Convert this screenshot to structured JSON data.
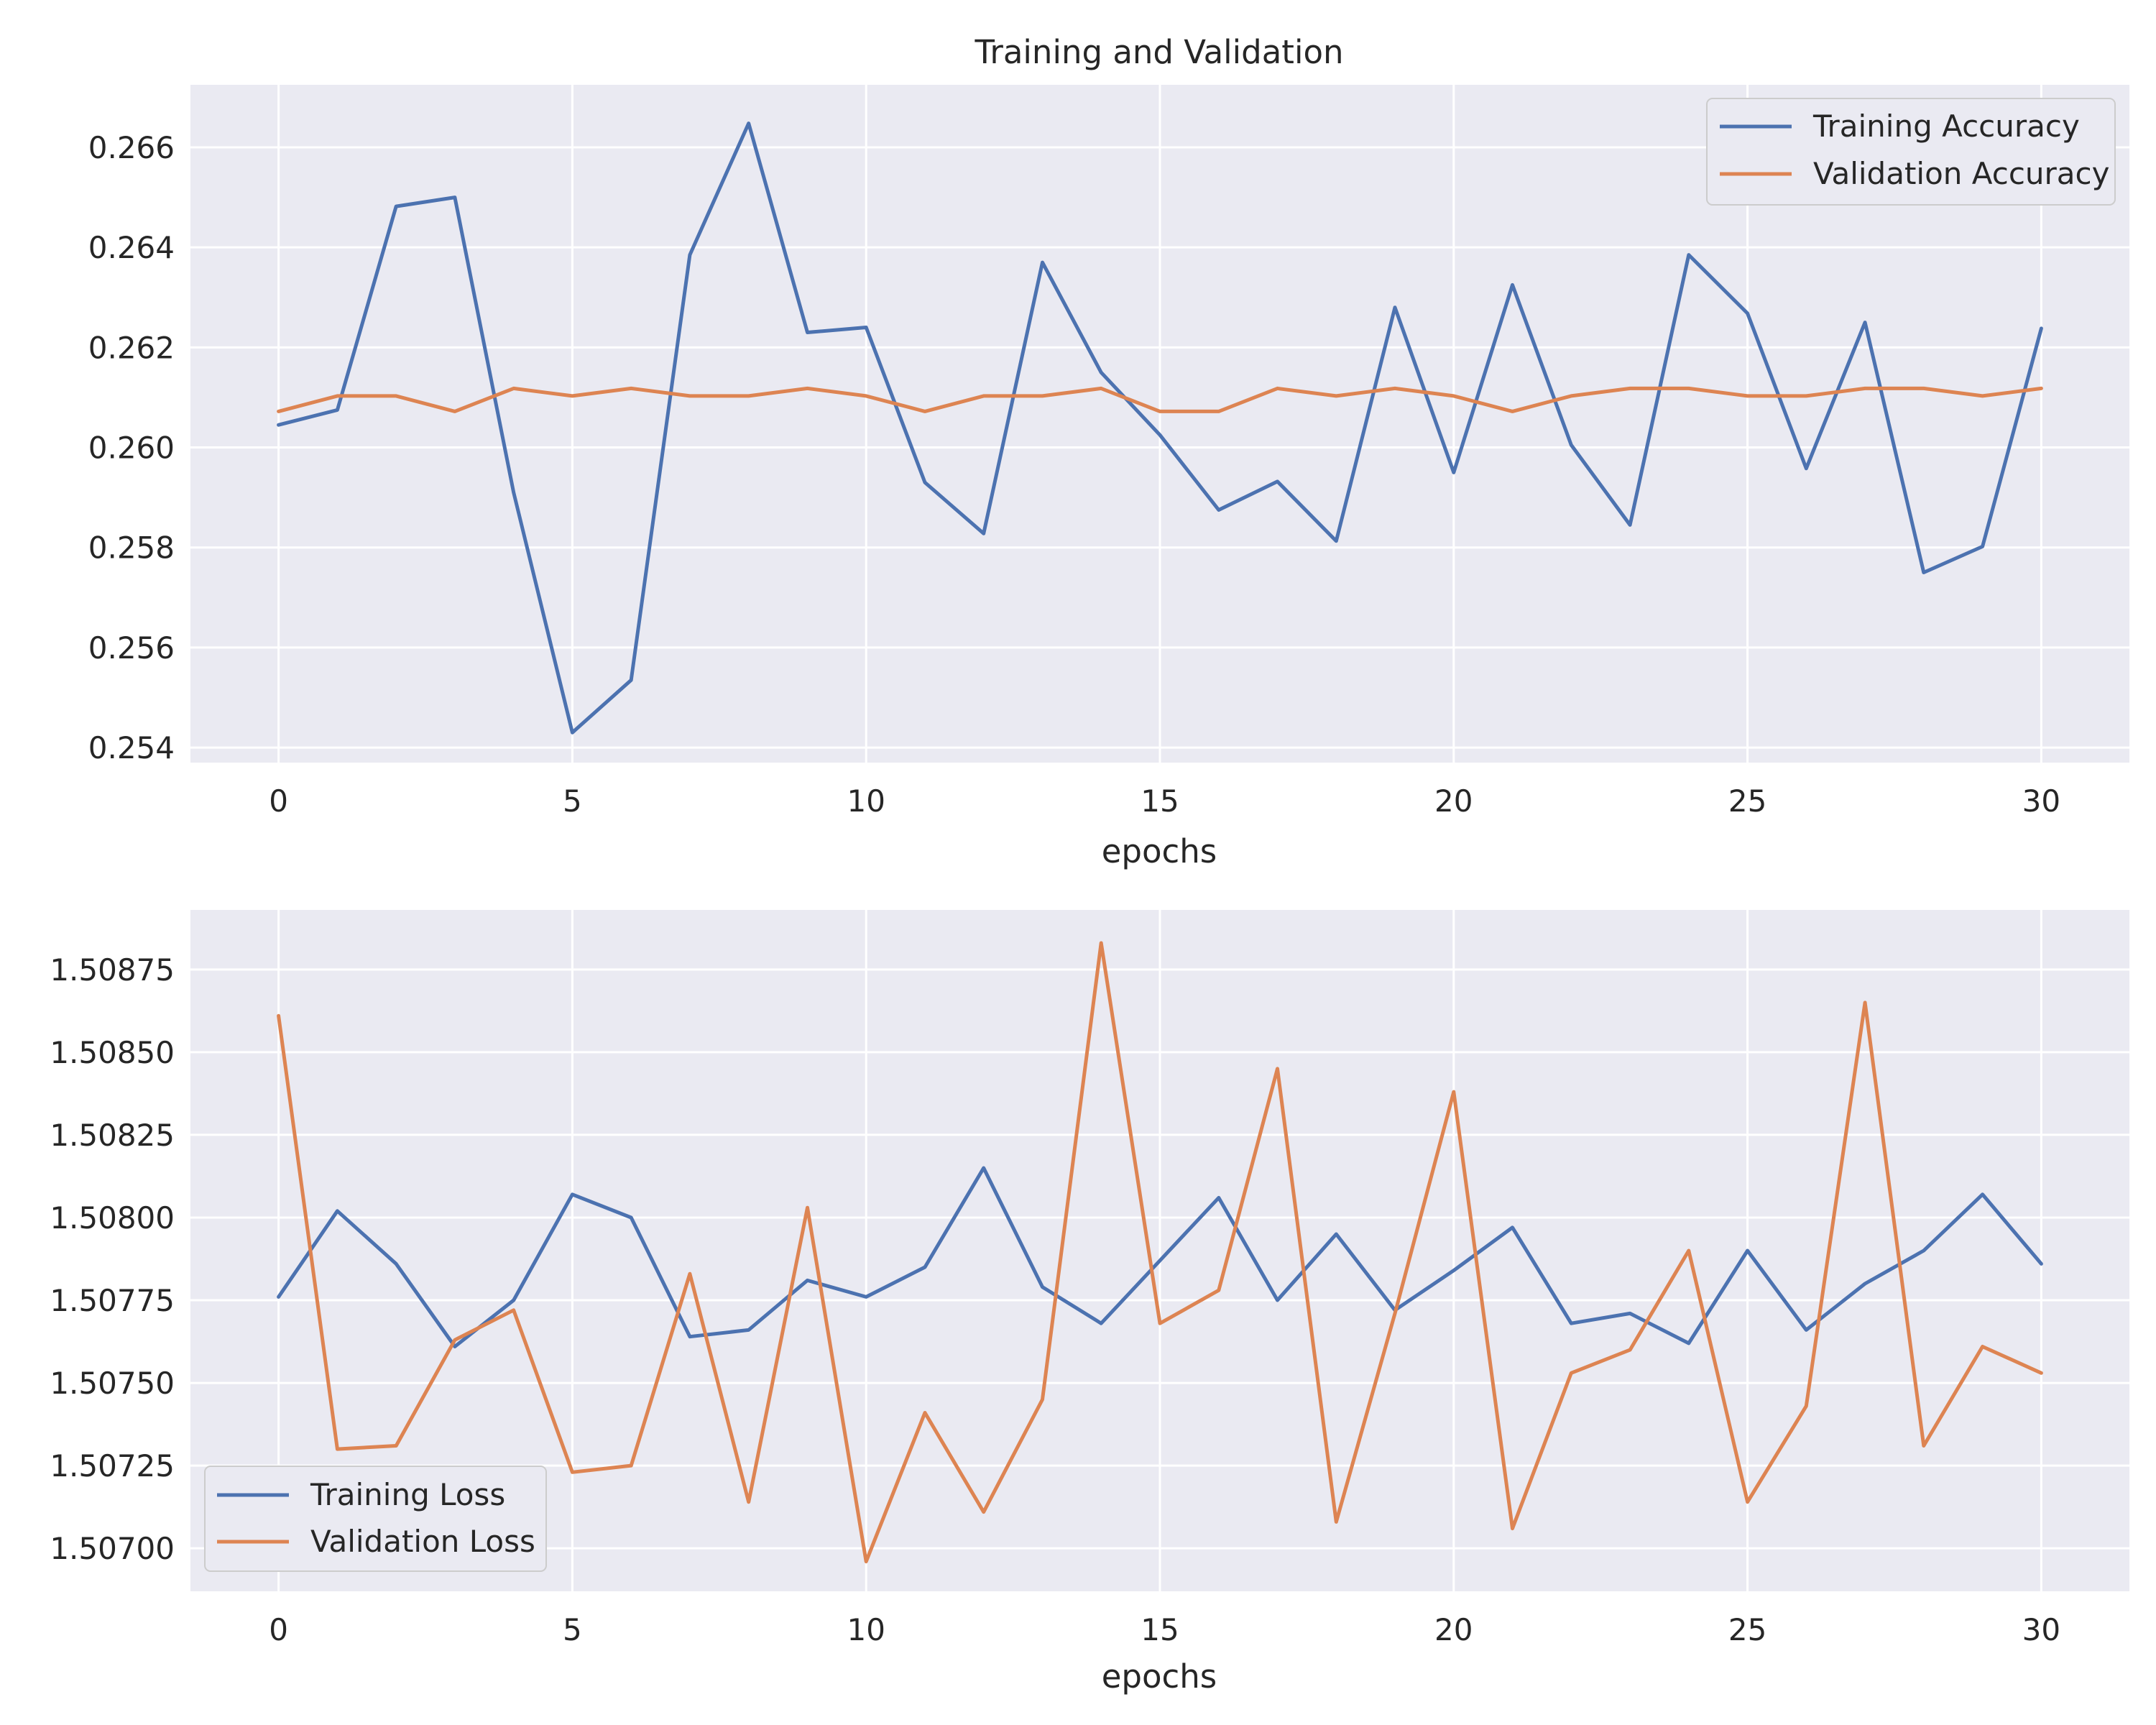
{
  "colors": {
    "axes_background": "#eaeaf2",
    "grid": "#ffffff",
    "training": "#4c72b0",
    "validation": "#dd8452",
    "legend_background": "#eaeaf2",
    "legend_border": "#cccccc"
  },
  "chart_data": [
    {
      "type": "line",
      "title": "Training and Validation",
      "xlabel": "epochs",
      "ylabel": "",
      "xlim": [
        -1.5,
        31.5
      ],
      "ylim": [
        0.2537,
        0.26725
      ],
      "xticks": [
        0,
        5,
        10,
        15,
        20,
        25,
        30
      ],
      "xtick_labels": [
        "0",
        "5",
        "10",
        "15",
        "20",
        "25",
        "30"
      ],
      "yticks": [
        0.254,
        0.256,
        0.258,
        0.26,
        0.262,
        0.264,
        0.266
      ],
      "ytick_labels": [
        "0.254",
        "0.256",
        "0.258",
        "0.260",
        "0.262",
        "0.264",
        "0.266"
      ],
      "grid": true,
      "legend_position": "top-right",
      "x": [
        0,
        1,
        2,
        3,
        4,
        5,
        6,
        7,
        8,
        9,
        10,
        11,
        12,
        13,
        14,
        15,
        16,
        17,
        18,
        19,
        20,
        21,
        22,
        23,
        24,
        25,
        26,
        27,
        28,
        29,
        30
      ],
      "series": [
        {
          "name": "Training Accuracy",
          "color": "#4c72b0",
          "values": [
            0.26045,
            0.26075,
            0.26482,
            0.265,
            0.2591,
            0.2543,
            0.25535,
            0.26385,
            0.26648,
            0.2623,
            0.2624,
            0.2593,
            0.25828,
            0.2637,
            0.2615,
            0.26025,
            0.25875,
            0.25932,
            0.25813,
            0.2628,
            0.2595,
            0.26325,
            0.26005,
            0.25845,
            0.26385,
            0.26268,
            0.25958,
            0.2625,
            0.2575,
            0.25802,
            0.26238
          ]
        },
        {
          "name": "Validation Accuracy",
          "color": "#dd8452",
          "values": [
            0.26072,
            0.26103,
            0.26103,
            0.26072,
            0.26118,
            0.26103,
            0.26118,
            0.26103,
            0.26103,
            0.26118,
            0.26103,
            0.26072,
            0.26103,
            0.26103,
            0.26118,
            0.26072,
            0.26072,
            0.26118,
            0.26103,
            0.26118,
            0.26103,
            0.26072,
            0.26103,
            0.26118,
            0.26118,
            0.26103,
            0.26103,
            0.26118,
            0.26118,
            0.26103,
            0.26118
          ]
        }
      ]
    },
    {
      "type": "line",
      "title": "",
      "xlabel": "epochs",
      "ylabel": "",
      "xlim": [
        -1.5,
        31.5
      ],
      "ylim": [
        1.50687,
        1.50893
      ],
      "xticks": [
        0,
        5,
        10,
        15,
        20,
        25,
        30
      ],
      "xtick_labels": [
        "0",
        "5",
        "10",
        "15",
        "20",
        "25",
        "30"
      ],
      "yticks": [
        1.507,
        1.50725,
        1.5075,
        1.50775,
        1.508,
        1.50825,
        1.5085,
        1.50875
      ],
      "ytick_labels": [
        "1.50700",
        "1.50725",
        "1.50750",
        "1.50775",
        "1.50800",
        "1.50825",
        "1.50850",
        "1.50875"
      ],
      "grid": true,
      "legend_position": "bottom-left",
      "x": [
        0,
        1,
        2,
        3,
        4,
        5,
        6,
        7,
        8,
        9,
        10,
        11,
        12,
        13,
        14,
        15,
        16,
        17,
        18,
        19,
        20,
        21,
        22,
        23,
        24,
        25,
        26,
        27,
        28,
        29,
        30
      ],
      "series": [
        {
          "name": "Training Loss",
          "color": "#4c72b0",
          "values": [
            1.50776,
            1.50802,
            1.50786,
            1.50761,
            1.50775,
            1.50807,
            1.508,
            1.50764,
            1.50766,
            1.50781,
            1.50776,
            1.50785,
            1.50815,
            1.50779,
            1.50768,
            1.50787,
            1.50806,
            1.50775,
            1.50795,
            1.50772,
            1.50784,
            1.50797,
            1.50768,
            1.50771,
            1.50762,
            1.5079,
            1.50766,
            1.5078,
            1.5079,
            1.50807,
            1.50786
          ]
        },
        {
          "name": "Validation Loss",
          "color": "#dd8452",
          "values": [
            1.50861,
            1.5073,
            1.50731,
            1.50763,
            1.50772,
            1.50723,
            1.50725,
            1.50783,
            1.50714,
            1.50803,
            1.50696,
            1.50741,
            1.50711,
            1.50745,
            1.50883,
            1.50768,
            1.50778,
            1.50845,
            1.50708,
            1.50771,
            1.50838,
            1.50706,
            1.50753,
            1.5076,
            1.5079,
            1.50714,
            1.50743,
            1.50865,
            1.50731,
            1.50761,
            1.50753
          ]
        }
      ]
    }
  ]
}
